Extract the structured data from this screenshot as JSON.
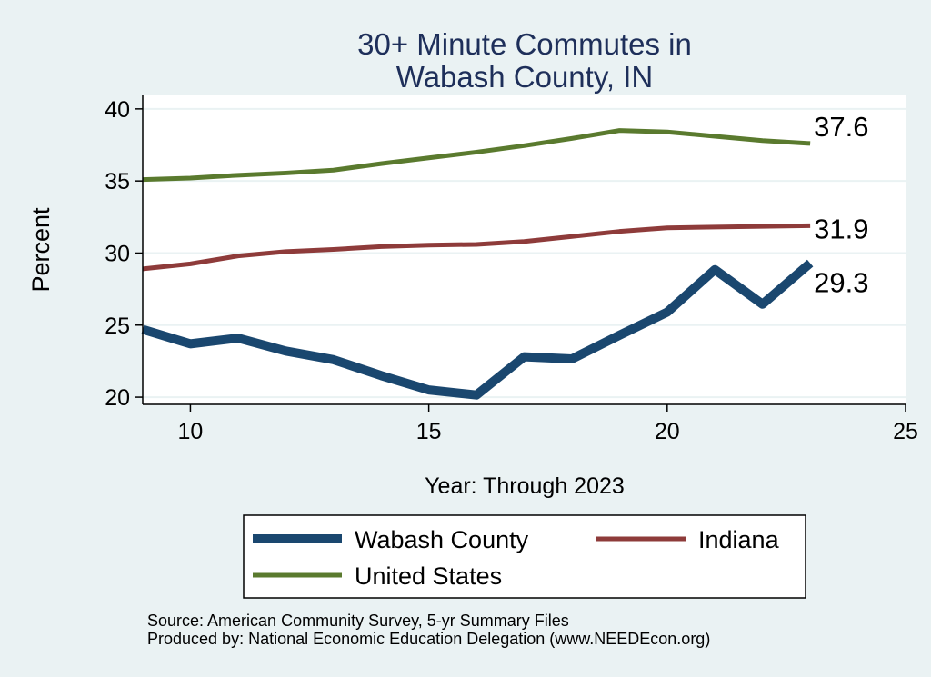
{
  "chart_data": {
    "type": "line",
    "title_lines": [
      "30+ Minute Commutes in",
      "Wabash County, IN"
    ],
    "xlabel": "Year: Through 2023",
    "ylabel": "Percent",
    "xlim": [
      9,
      25
    ],
    "ylim": [
      19.5,
      41
    ],
    "x_ticks": [
      10,
      15,
      20,
      25
    ],
    "y_ticks": [
      20,
      25,
      30,
      35,
      40
    ],
    "grid": true,
    "x": [
      9,
      10,
      11,
      12,
      13,
      14,
      15,
      16,
      17,
      18,
      19,
      20,
      21,
      22,
      23
    ],
    "series": [
      {
        "name": "United States",
        "color": "#5a7a2e",
        "width": 5,
        "values": [
          35.1,
          35.2,
          35.4,
          35.55,
          35.75,
          36.2,
          36.6,
          37.0,
          37.45,
          37.95,
          38.5,
          38.4,
          38.1,
          37.8,
          37.6
        ],
        "end_label": "37.6"
      },
      {
        "name": "Indiana",
        "color": "#8e3b3a",
        "width": 5,
        "values": [
          28.9,
          29.25,
          29.8,
          30.1,
          30.25,
          30.45,
          30.55,
          30.6,
          30.8,
          31.15,
          31.5,
          31.75,
          31.8,
          31.85,
          31.9
        ],
        "end_label": "31.9"
      },
      {
        "name": "Wabash County",
        "color": "#1a476f",
        "width": 10,
        "values": [
          24.7,
          23.7,
          24.1,
          23.2,
          22.6,
          21.5,
          20.5,
          20.15,
          22.8,
          22.65,
          24.3,
          25.9,
          28.85,
          26.45,
          29.3
        ],
        "end_label": "29.3"
      }
    ],
    "legend": {
      "position": "bottom",
      "entries": [
        "Wabash County",
        "Indiana",
        "United States"
      ]
    },
    "notes": [
      "Source: American Community Survey, 5-yr Summary Files",
      "Produced by: National Economic Education Delegation (www.NEEDEcon.org)"
    ]
  }
}
